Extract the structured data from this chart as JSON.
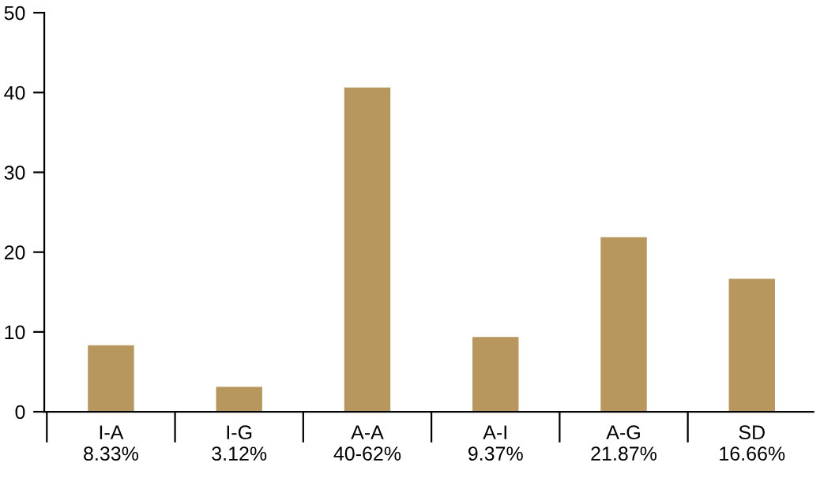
{
  "chart_data": {
    "type": "bar",
    "categories": [
      "I-A\n8.33%",
      "I-G\n3.12%",
      "A-A\n40-62%",
      "A-I\n9.37%",
      "A-G\n21.87%",
      "SD\n16.66%"
    ],
    "values": [
      8.33,
      3.12,
      40.62,
      9.37,
      21.87,
      16.66
    ],
    "color": "#b8975e",
    "ylim": [
      0,
      50
    ],
    "yticks": [
      0,
      10,
      20,
      30,
      40,
      50
    ],
    "grid": false,
    "legend": false
  }
}
